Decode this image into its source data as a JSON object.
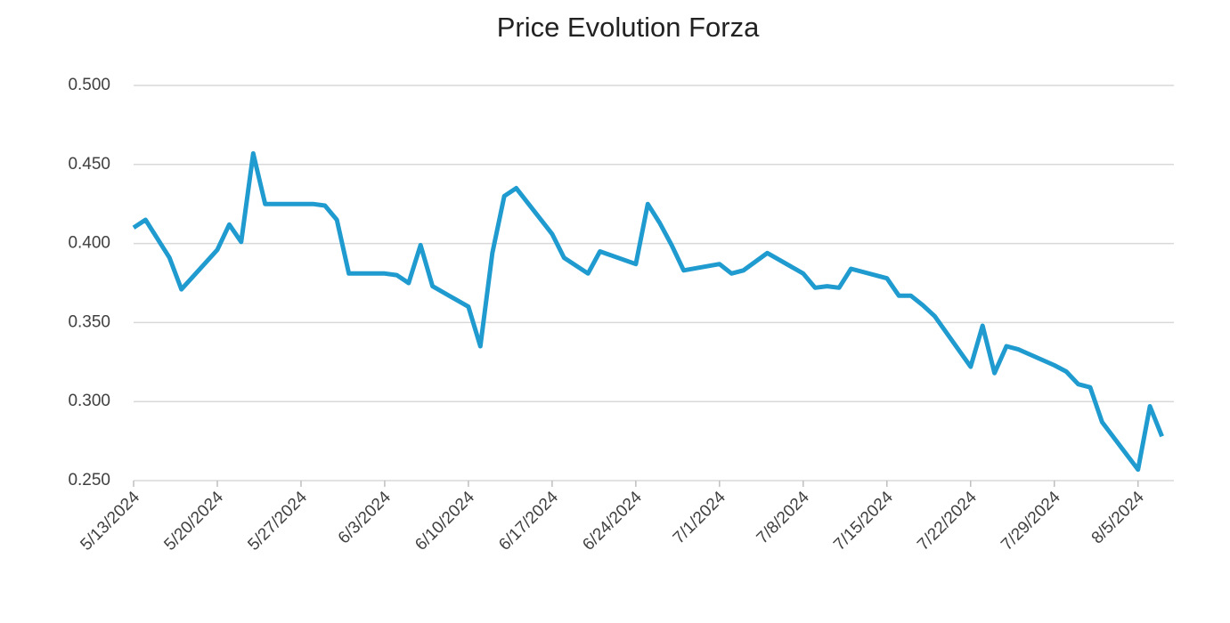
{
  "chart_data": {
    "type": "line",
    "title": "Price Evolution Forza",
    "x": [
      "5/13/2024",
      "5/14/2024",
      "5/16/2024",
      "5/17/2024",
      "5/20/2024",
      "5/21/2024",
      "5/22/2024",
      "5/23/2024",
      "5/24/2024",
      "5/28/2024",
      "5/29/2024",
      "5/30/2024",
      "5/31/2024",
      "6/3/2024",
      "6/4/2024",
      "6/5/2024",
      "6/6/2024",
      "6/7/2024",
      "6/10/2024",
      "6/11/2024",
      "6/12/2024",
      "6/13/2024",
      "6/14/2024",
      "6/17/2024",
      "6/18/2024",
      "6/20/2024",
      "6/21/2024",
      "6/24/2024",
      "6/25/2024",
      "6/26/2024",
      "6/27/2024",
      "6/28/2024",
      "7/1/2024",
      "7/2/2024",
      "7/3/2024",
      "7/5/2024",
      "7/8/2024",
      "7/9/2024",
      "7/10/2024",
      "7/11/2024",
      "7/12/2024",
      "7/15/2024",
      "7/16/2024",
      "7/17/2024",
      "7/18/2024",
      "7/19/2024",
      "7/22/2024",
      "7/23/2024",
      "7/24/2024",
      "7/25/2024",
      "7/26/2024",
      "7/29/2024",
      "7/30/2024",
      "7/31/2024",
      "8/1/2024",
      "8/2/2024",
      "8/5/2024",
      "8/6/2024",
      "8/7/2024"
    ],
    "series": [
      {
        "color": "#1f9bcf",
        "values": [
          0.41,
          0.415,
          0.391,
          0.371,
          0.396,
          0.412,
          0.401,
          0.457,
          0.425,
          0.425,
          0.424,
          0.415,
          0.381,
          0.381,
          0.38,
          0.375,
          0.399,
          0.373,
          0.36,
          0.335,
          0.394,
          0.43,
          0.435,
          0.406,
          0.391,
          0.381,
          0.395,
          0.387,
          0.425,
          0.413,
          0.399,
          0.383,
          0.387,
          0.381,
          0.383,
          0.394,
          0.381,
          0.372,
          0.373,
          0.372,
          0.384,
          0.378,
          0.367,
          0.367,
          0.361,
          0.354,
          0.322,
          0.348,
          0.318,
          0.335,
          0.333,
          0.323,
          0.319,
          0.311,
          0.309,
          0.287,
          0.257,
          0.297,
          0.278
        ]
      }
    ],
    "xlim": [
      "5/13/2024",
      "8/8/2024"
    ],
    "xticks": [
      "5/13/2024",
      "5/20/2024",
      "5/27/2024",
      "6/3/2024",
      "6/10/2024",
      "6/17/2024",
      "6/24/2024",
      "7/1/2024",
      "7/8/2024",
      "7/15/2024",
      "7/22/2024",
      "7/29/2024",
      "8/5/2024"
    ],
    "ylim": [
      0.25,
      0.5
    ],
    "yticks": [
      {
        "value": 0.25,
        "label": "0.250"
      },
      {
        "value": 0.3,
        "label": "0.300"
      },
      {
        "value": 0.35,
        "label": "0.350"
      },
      {
        "value": 0.4,
        "label": "0.400"
      },
      {
        "value": 0.45,
        "label": "0.450"
      },
      {
        "value": 0.5,
        "label": "0.500"
      }
    ],
    "grid": true
  }
}
